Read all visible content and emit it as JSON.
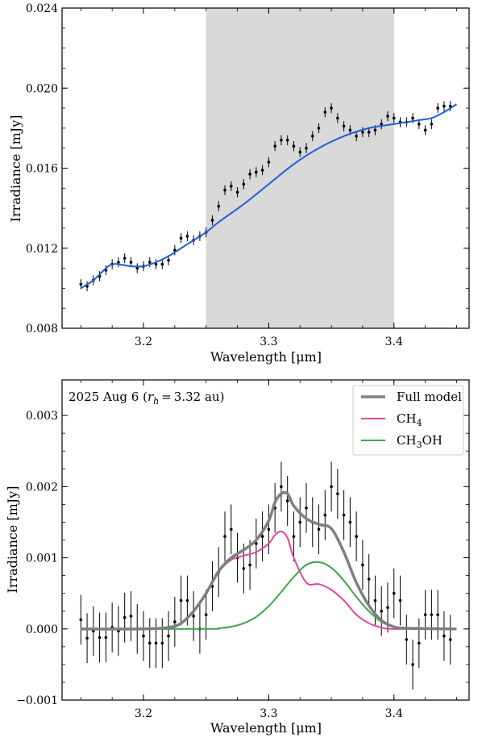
{
  "chart_data": [
    {
      "type": "scatter",
      "xlabel": "Wavelength [μm]",
      "ylabel": "Irradiance [mJy]",
      "xlim": [
        3.135,
        3.46
      ],
      "ylim": [
        0.008,
        0.024
      ],
      "xticks": [
        "3.2",
        "3.3",
        "3.4"
      ],
      "xtick_values": [
        3.2,
        3.3,
        3.4
      ],
      "yticks": [
        "0.008",
        "0.012",
        "0.016",
        "0.020",
        "0.024"
      ],
      "ytick_values": [
        0.008,
        0.012,
        0.016,
        0.02,
        0.024
      ],
      "shaded_region": [
        3.25,
        3.4
      ],
      "shaded_color": "#d9d9d9",
      "points": {
        "x": [
          3.15,
          3.155,
          3.16,
          3.165,
          3.17,
          3.175,
          3.18,
          3.185,
          3.19,
          3.195,
          3.2,
          3.205,
          3.21,
          3.215,
          3.22,
          3.225,
          3.23,
          3.235,
          3.24,
          3.245,
          3.25,
          3.255,
          3.26,
          3.265,
          3.27,
          3.275,
          3.28,
          3.285,
          3.29,
          3.295,
          3.3,
          3.305,
          3.31,
          3.315,
          3.32,
          3.325,
          3.33,
          3.335,
          3.34,
          3.345,
          3.35,
          3.355,
          3.36,
          3.365,
          3.37,
          3.375,
          3.38,
          3.385,
          3.39,
          3.395,
          3.4,
          3.405,
          3.41,
          3.415,
          3.42,
          3.425,
          3.43,
          3.435,
          3.44,
          3.445
        ],
        "y": [
          0.0102,
          0.0101,
          0.0104,
          0.0106,
          0.0109,
          0.0112,
          0.0113,
          0.0115,
          0.0113,
          0.011,
          0.0111,
          0.0113,
          0.0112,
          0.0112,
          0.0114,
          0.0119,
          0.0125,
          0.0126,
          0.0124,
          0.0126,
          0.0128,
          0.0134,
          0.0141,
          0.0149,
          0.0151,
          0.0148,
          0.0152,
          0.0157,
          0.0158,
          0.0159,
          0.0163,
          0.0171,
          0.0174,
          0.0174,
          0.0171,
          0.0168,
          0.017,
          0.0176,
          0.018,
          0.0188,
          0.019,
          0.0185,
          0.0181,
          0.0179,
          0.0176,
          0.0178,
          0.0178,
          0.0179,
          0.0182,
          0.0186,
          0.0185,
          0.0183,
          0.0183,
          0.0185,
          0.0182,
          0.0179,
          0.0182,
          0.019,
          0.0191,
          0.0191
        ],
        "err": [
          0.00025,
          0.00025,
          0.00025,
          0.00025,
          0.00025,
          0.00025,
          0.00025,
          0.00025,
          0.00025,
          0.00025,
          0.00025,
          0.00025,
          0.00025,
          0.00025,
          0.00025,
          0.00025,
          0.00025,
          0.00025,
          0.00025,
          0.00025,
          0.00025,
          0.00025,
          0.00025,
          0.00025,
          0.00025,
          0.00025,
          0.00025,
          0.00025,
          0.00025,
          0.00025,
          0.00025,
          0.00025,
          0.00025,
          0.00025,
          0.00025,
          0.00025,
          0.00025,
          0.00025,
          0.00025,
          0.00025,
          0.00025,
          0.00025,
          0.00025,
          0.00025,
          0.00025,
          0.00025,
          0.00025,
          0.00025,
          0.00025,
          0.00025,
          0.00025,
          0.00025,
          0.00025,
          0.00025,
          0.00025,
          0.00025,
          0.00025,
          0.00025,
          0.00025,
          0.00025
        ],
        "color": "#000000"
      },
      "continuum": {
        "color": "#1f5fd6",
        "x": [
          3.15,
          3.16,
          3.17,
          3.175,
          3.18,
          3.19,
          3.2,
          3.21,
          3.22,
          3.23,
          3.24,
          3.25,
          3.26,
          3.28,
          3.3,
          3.32,
          3.34,
          3.36,
          3.38,
          3.4,
          3.42,
          3.43,
          3.44,
          3.45
        ],
        "y": [
          0.01,
          0.0104,
          0.011,
          0.0112,
          0.0112,
          0.0111,
          0.0111,
          0.0113,
          0.0116,
          0.012,
          0.0124,
          0.0128,
          0.0133,
          0.0142,
          0.0152,
          0.0162,
          0.017,
          0.0176,
          0.018,
          0.0182,
          0.0184,
          0.0185,
          0.0188,
          0.0192
        ]
      }
    },
    {
      "type": "line",
      "xlabel": "Wavelength [μm]",
      "ylabel": "Irradiance [mJy]",
      "xlim": [
        3.135,
        3.46
      ],
      "ylim": [
        -0.001,
        0.0035
      ],
      "xticks": [
        "3.2",
        "3.3",
        "3.4"
      ],
      "xtick_values": [
        3.2,
        3.3,
        3.4
      ],
      "yticks": [
        "−0.001",
        "0.000",
        "0.001",
        "0.002",
        "0.003"
      ],
      "ytick_values": [
        -0.001,
        0.0,
        0.001,
        0.002,
        0.003
      ],
      "annotation": {
        "prefix": "2025 Aug 6 (",
        "var": "r",
        "sub": "h",
        "rest": " = 3.32 au)"
      },
      "legend": [
        {
          "main": "Full model",
          "sub": "",
          "tail": "",
          "color": "#7f7f7f",
          "width": 3.5
        },
        {
          "main": "CH",
          "sub": "4",
          "tail": "",
          "color": "#e0479e",
          "width": 2
        },
        {
          "main": "CH",
          "sub": "3",
          "tail": "OH",
          "color": "#3fa34d",
          "width": 2
        }
      ],
      "series": [
        {
          "key": "ch4",
          "color": "#e0479e",
          "width": 2,
          "x": [
            3.15,
            3.2,
            3.22,
            3.23,
            3.24,
            3.25,
            3.26,
            3.27,
            3.28,
            3.29,
            3.3,
            3.305,
            3.31,
            3.315,
            3.32,
            3.33,
            3.34,
            3.35,
            3.36,
            3.37,
            3.38,
            3.39,
            3.4,
            3.45
          ],
          "y": [
            0,
            0,
            2e-05,
            8e-05,
            0.00025,
            0.0005,
            0.0008,
            0.00097,
            0.00103,
            0.00108,
            0.0012,
            0.00132,
            0.00137,
            0.00128,
            0.001,
            0.00065,
            0.00063,
            0.00055,
            0.0004,
            0.0002,
            8e-05,
            2e-05,
            0,
            0
          ]
        },
        {
          "key": "ch3oh",
          "color": "#3fa34d",
          "width": 2,
          "x": [
            3.15,
            3.25,
            3.26,
            3.27,
            3.28,
            3.29,
            3.3,
            3.31,
            3.32,
            3.33,
            3.34,
            3.35,
            3.36,
            3.37,
            3.38,
            3.39,
            3.4,
            3.41,
            3.45
          ],
          "y": [
            0,
            0,
            1e-05,
            3e-05,
            8e-05,
            0.00017,
            0.00032,
            0.00052,
            0.00073,
            0.0009,
            0.00094,
            0.00086,
            0.00068,
            0.00045,
            0.00025,
            0.0001,
            3e-05,
            1e-05,
            0
          ]
        },
        {
          "key": "full",
          "color": "#7f7f7f",
          "width": 3.5,
          "x": [
            3.15,
            3.2,
            3.22,
            3.23,
            3.24,
            3.25,
            3.26,
            3.27,
            3.28,
            3.29,
            3.3,
            3.305,
            3.31,
            3.315,
            3.32,
            3.33,
            3.34,
            3.35,
            3.36,
            3.37,
            3.38,
            3.39,
            3.4,
            3.41,
            3.45
          ],
          "y": [
            0,
            0,
            2e-05,
            8e-05,
            0.00025,
            0.0005,
            0.00081,
            0.001,
            0.00111,
            0.00125,
            0.00152,
            0.00178,
            0.0019,
            0.0019,
            0.00173,
            0.00155,
            0.00147,
            0.00141,
            0.00108,
            0.00065,
            0.00033,
            0.00012,
            3e-05,
            1e-05,
            0
          ]
        }
      ],
      "points": {
        "x": [
          3.15,
          3.155,
          3.16,
          3.165,
          3.17,
          3.175,
          3.18,
          3.185,
          3.19,
          3.195,
          3.2,
          3.205,
          3.21,
          3.215,
          3.22,
          3.225,
          3.23,
          3.235,
          3.24,
          3.245,
          3.25,
          3.255,
          3.26,
          3.265,
          3.27,
          3.275,
          3.28,
          3.285,
          3.29,
          3.295,
          3.3,
          3.305,
          3.31,
          3.315,
          3.32,
          3.325,
          3.33,
          3.335,
          3.34,
          3.345,
          3.35,
          3.355,
          3.36,
          3.365,
          3.37,
          3.375,
          3.38,
          3.385,
          3.39,
          3.395,
          3.4,
          3.405,
          3.41,
          3.415,
          3.42,
          3.425,
          3.43,
          3.435,
          3.44,
          3.445
        ],
        "y": [
          0.00013,
          -0.00013,
          -3e-05,
          -0.00012,
          -0.00012,
          2e-05,
          -3e-05,
          0.00016,
          0.00018,
          0.0,
          -0.0001,
          -0.0002,
          -0.0002,
          -0.0002,
          -0.0001,
          0.0001,
          0.0004,
          0.0004,
          0.00018,
          0.0,
          0.0002,
          0.0006,
          0.0008,
          0.0013,
          0.0014,
          0.001,
          0.00085,
          0.0009,
          0.0012,
          0.0013,
          0.0014,
          0.0017,
          0.002,
          0.0018,
          0.0013,
          0.0015,
          0.0017,
          0.0015,
          0.0014,
          0.0016,
          0.002,
          0.0019,
          0.0016,
          0.0015,
          0.0013,
          0.0009,
          0.0007,
          0.0004,
          0.00025,
          0.0003,
          0.0005,
          0.0004,
          -0.00015,
          -0.0005,
          -0.0002,
          0.0002,
          0.0002,
          0.0002,
          -0.0001,
          -0.00015
        ],
        "err": [
          0.00035,
          0.00035,
          0.00035,
          0.00035,
          0.00035,
          0.00035,
          0.00035,
          0.00035,
          0.00035,
          0.00035,
          0.00035,
          0.00035,
          0.00035,
          0.00035,
          0.00035,
          0.00035,
          0.00035,
          0.00035,
          0.00035,
          0.00035,
          0.00035,
          0.00035,
          0.00035,
          0.00035,
          0.00035,
          0.00035,
          0.00035,
          0.00035,
          0.00035,
          0.00035,
          0.00035,
          0.00035,
          0.00035,
          0.00035,
          0.00035,
          0.00035,
          0.00035,
          0.00035,
          0.00035,
          0.00035,
          0.00035,
          0.00035,
          0.00035,
          0.00035,
          0.00035,
          0.00035,
          0.00035,
          0.00035,
          0.00035,
          0.00035,
          0.00035,
          0.00035,
          0.00035,
          0.00035,
          0.00035,
          0.00035,
          0.00035,
          0.00035,
          0.00035,
          0.00035
        ],
        "color": "#000000"
      }
    }
  ]
}
